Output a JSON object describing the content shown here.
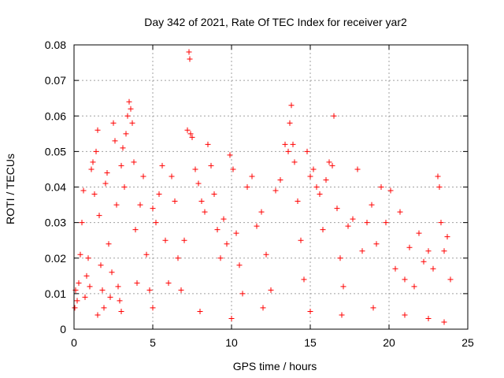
{
  "chart_data": {
    "type": "scatter",
    "title": "Day 342 of 2021, Rate Of TEC Index for receiver yar2",
    "xlabel": "GPS time / hours",
    "ylabel": "ROTI / TECUs",
    "xlim": [
      0,
      25
    ],
    "ylim": [
      0,
      0.08
    ],
    "x_ticks": [
      0,
      5,
      10,
      15,
      20,
      25
    ],
    "x_tick_labels": [
      "0",
      "5",
      "10",
      "15",
      "20",
      "25"
    ],
    "y_ticks": [
      0,
      0.01,
      0.02,
      0.03,
      0.04,
      0.05,
      0.06,
      0.07,
      0.08
    ],
    "y_tick_labels": [
      "0",
      "0.01",
      "0.02",
      "0.03",
      "0.04",
      "0.05",
      "0.06",
      "0.07",
      "0.08"
    ],
    "grid": true,
    "marker": "plus",
    "marker_color": "#ff0000",
    "series": [
      {
        "points": [
          [
            0.1,
            0.011
          ],
          [
            0.2,
            0.008
          ],
          [
            0.3,
            0.013
          ],
          [
            0.4,
            0.021
          ],
          [
            0.5,
            0.03
          ],
          [
            0.6,
            0.039
          ],
          [
            0.7,
            0.009
          ],
          [
            0.8,
            0.015
          ],
          [
            0.9,
            0.02
          ],
          [
            1.0,
            0.012
          ],
          [
            1.1,
            0.045
          ],
          [
            1.2,
            0.047
          ],
          [
            1.3,
            0.038
          ],
          [
            1.4,
            0.05
          ],
          [
            1.5,
            0.056
          ],
          [
            1.6,
            0.032
          ],
          [
            1.7,
            0.018
          ],
          [
            1.8,
            0.011
          ],
          [
            1.9,
            0.006
          ],
          [
            2.0,
            0.041
          ],
          [
            2.1,
            0.044
          ],
          [
            2.2,
            0.024
          ],
          [
            2.3,
            0.009
          ],
          [
            2.4,
            0.016
          ],
          [
            2.5,
            0.058
          ],
          [
            2.6,
            0.053
          ],
          [
            2.7,
            0.035
          ],
          [
            2.8,
            0.012
          ],
          [
            2.9,
            0.008
          ],
          [
            3.0,
            0.046
          ],
          [
            3.1,
            0.051
          ],
          [
            3.2,
            0.04
          ],
          [
            3.3,
            0.055
          ],
          [
            3.4,
            0.06
          ],
          [
            3.5,
            0.064
          ],
          [
            3.6,
            0.062
          ],
          [
            3.7,
            0.058
          ],
          [
            3.8,
            0.047
          ],
          [
            3.9,
            0.028
          ],
          [
            4.0,
            0.013
          ],
          [
            4.2,
            0.035
          ],
          [
            4.4,
            0.043
          ],
          [
            4.6,
            0.021
          ],
          [
            4.8,
            0.011
          ],
          [
            5.0,
            0.034
          ],
          [
            5.2,
            0.03
          ],
          [
            5.4,
            0.038
          ],
          [
            5.6,
            0.046
          ],
          [
            5.8,
            0.025
          ],
          [
            6.0,
            0.013
          ],
          [
            6.2,
            0.043
          ],
          [
            6.4,
            0.036
          ],
          [
            6.6,
            0.02
          ],
          [
            6.8,
            0.011
          ],
          [
            7.0,
            0.025
          ],
          [
            7.2,
            0.056
          ],
          [
            7.3,
            0.078
          ],
          [
            7.35,
            0.076
          ],
          [
            7.4,
            0.055
          ],
          [
            7.5,
            0.054
          ],
          [
            7.7,
            0.045
          ],
          [
            7.9,
            0.041
          ],
          [
            8.1,
            0.036
          ],
          [
            8.3,
            0.033
          ],
          [
            8.5,
            0.052
          ],
          [
            8.7,
            0.046
          ],
          [
            8.9,
            0.038
          ],
          [
            9.1,
            0.028
          ],
          [
            9.3,
            0.02
          ],
          [
            9.5,
            0.031
          ],
          [
            9.7,
            0.024
          ],
          [
            9.9,
            0.049
          ],
          [
            10.1,
            0.045
          ],
          [
            10.3,
            0.027
          ],
          [
            10.5,
            0.018
          ],
          [
            10.7,
            0.01
          ],
          [
            11.0,
            0.04
          ],
          [
            11.3,
            0.043
          ],
          [
            11.6,
            0.029
          ],
          [
            11.9,
            0.033
          ],
          [
            12.2,
            0.021
          ],
          [
            12.5,
            0.011
          ],
          [
            12.8,
            0.039
          ],
          [
            13.1,
            0.042
          ],
          [
            13.4,
            0.052
          ],
          [
            13.6,
            0.05
          ],
          [
            13.7,
            0.058
          ],
          [
            13.8,
            0.063
          ],
          [
            13.9,
            0.052
          ],
          [
            14.0,
            0.047
          ],
          [
            14.2,
            0.036
          ],
          [
            14.4,
            0.025
          ],
          [
            14.6,
            0.014
          ],
          [
            14.8,
            0.05
          ],
          [
            15.0,
            0.043
          ],
          [
            15.2,
            0.045
          ],
          [
            15.4,
            0.04
          ],
          [
            15.6,
            0.038
          ],
          [
            15.8,
            0.028
          ],
          [
            16.0,
            0.042
          ],
          [
            16.2,
            0.047
          ],
          [
            16.4,
            0.046
          ],
          [
            16.5,
            0.06
          ],
          [
            16.7,
            0.034
          ],
          [
            16.9,
            0.02
          ],
          [
            17.1,
            0.012
          ],
          [
            17.4,
            0.029
          ],
          [
            17.7,
            0.031
          ],
          [
            18.0,
            0.045
          ],
          [
            18.3,
            0.022
          ],
          [
            18.6,
            0.03
          ],
          [
            18.9,
            0.035
          ],
          [
            19.2,
            0.024
          ],
          [
            19.5,
            0.04
          ],
          [
            19.8,
            0.03
          ],
          [
            20.1,
            0.039
          ],
          [
            20.4,
            0.017
          ],
          [
            20.7,
            0.033
          ],
          [
            21.0,
            0.014
          ],
          [
            21.3,
            0.023
          ],
          [
            21.6,
            0.012
          ],
          [
            21.9,
            0.027
          ],
          [
            22.2,
            0.019
          ],
          [
            22.5,
            0.022
          ],
          [
            22.8,
            0.017
          ],
          [
            23.1,
            0.043
          ],
          [
            23.2,
            0.04
          ],
          [
            23.3,
            0.03
          ],
          [
            23.5,
            0.022
          ],
          [
            23.7,
            0.026
          ],
          [
            23.9,
            0.014
          ],
          [
            0.05,
            0.006
          ],
          [
            1.5,
            0.004
          ],
          [
            3.0,
            0.005
          ],
          [
            5.0,
            0.006
          ],
          [
            8.0,
            0.005
          ],
          [
            10.0,
            0.003
          ],
          [
            12.0,
            0.006
          ],
          [
            15.0,
            0.005
          ],
          [
            17.0,
            0.004
          ],
          [
            19.0,
            0.006
          ],
          [
            21.0,
            0.004
          ],
          [
            22.5,
            0.003
          ],
          [
            23.5,
            0.002
          ]
        ]
      }
    ]
  }
}
